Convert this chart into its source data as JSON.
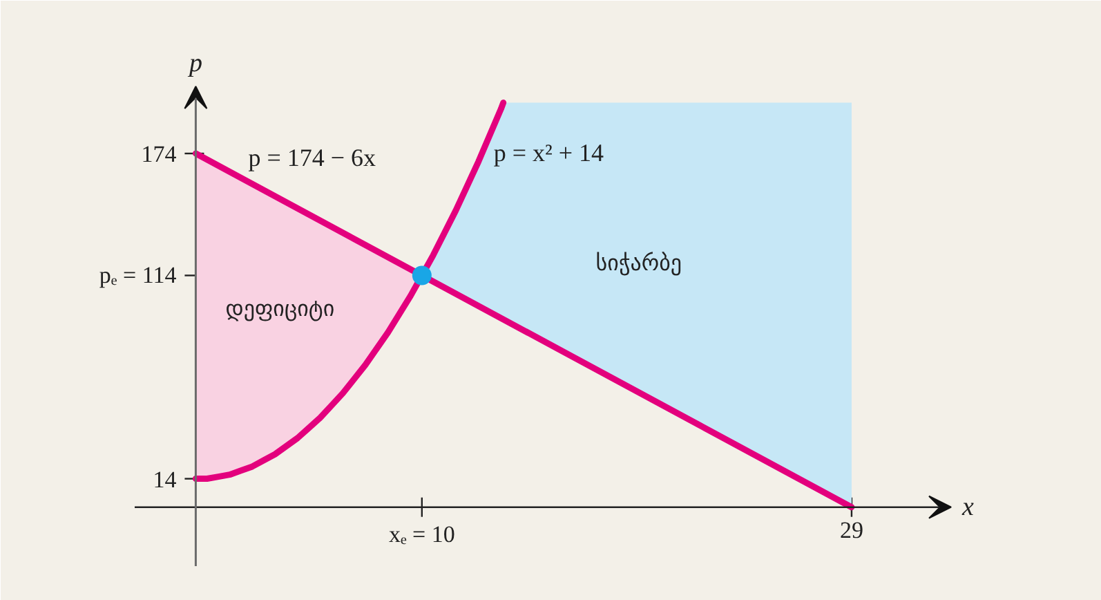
{
  "chart_data": {
    "type": "line",
    "xlabel": "x",
    "ylabel": "p",
    "xlim": [
      -2.7,
      33.4
    ],
    "ylim": [
      -29,
      207
    ],
    "xticks": [
      {
        "value": 10,
        "label": "xₑ = 10"
      },
      29
    ],
    "yticks": [
      14,
      {
        "value": 114,
        "label": "pₑ = 114"
      },
      174
    ],
    "annotations": [
      "დეფიციტი",
      "სიჭარბე"
    ],
    "series": [
      {
        "type": "area",
        "color": "#f9d2e2",
        "x": [
          0,
          0.5,
          1,
          1.5,
          2,
          2.5,
          3,
          3.5,
          4,
          4.5,
          5,
          5.5,
          6,
          6.5,
          7,
          7.5,
          8,
          8.5,
          9,
          9.5,
          10
        ],
        "values": [
          null,
          null,
          null,
          null,
          null,
          null,
          null,
          null,
          null,
          null,
          null,
          null,
          null,
          null,
          null,
          null,
          null,
          null,
          null,
          null,
          null
        ],
        "lower": [
          14,
          14,
          15,
          16,
          18,
          20,
          23,
          26,
          30,
          34,
          39,
          44,
          50,
          56,
          63,
          70,
          78,
          86,
          95,
          104,
          114
        ],
        "upper": [
          174,
          171,
          168,
          165,
          162,
          159,
          156,
          153,
          150,
          147,
          144,
          141,
          138,
          135,
          132,
          129,
          126,
          123,
          120,
          117,
          114
        ]
      },
      {
        "type": "area",
        "color": "#c6e7f6",
        "x": [
          10,
          10.5,
          11,
          11.5,
          12,
          12.5,
          13,
          13.5,
          13.6,
          29
        ],
        "values": [
          null,
          null,
          null,
          null,
          null,
          null,
          null,
          null,
          null,
          null
        ],
        "lower": [
          114,
          111,
          108,
          105,
          102,
          99,
          96,
          93,
          92.4,
          0
        ],
        "upper": [
          114,
          124,
          135,
          146,
          158,
          170,
          183,
          196,
          199,
          199
        ]
      },
      {
        "name": "p = 174 − 6x",
        "color": "#e3007d",
        "x": [
          0,
          10,
          29
        ],
        "values": [
          174,
          114,
          0
        ]
      },
      {
        "name": "p = x² + 14",
        "color": "#e3007d",
        "x": [
          0,
          0.5,
          1,
          1.5,
          2,
          2.5,
          3,
          3.5,
          4,
          4.5,
          5,
          5.5,
          6,
          6.5,
          7,
          7.5,
          8,
          8.5,
          9,
          9.5,
          10,
          10.5,
          11,
          11.5,
          12,
          12.5,
          13,
          13.5,
          13.6
        ],
        "values": [
          14,
          14,
          15,
          16,
          18,
          20,
          23,
          26,
          30,
          34,
          39,
          44,
          50,
          56,
          63,
          70,
          78,
          86,
          95,
          104,
          114,
          124,
          135,
          146,
          158,
          170,
          183,
          196,
          199
        ]
      },
      {
        "type": "scatter",
        "color": "#19a6e6",
        "marker": "circle",
        "x": [
          10
        ],
        "values": [
          114
        ]
      }
    ]
  }
}
